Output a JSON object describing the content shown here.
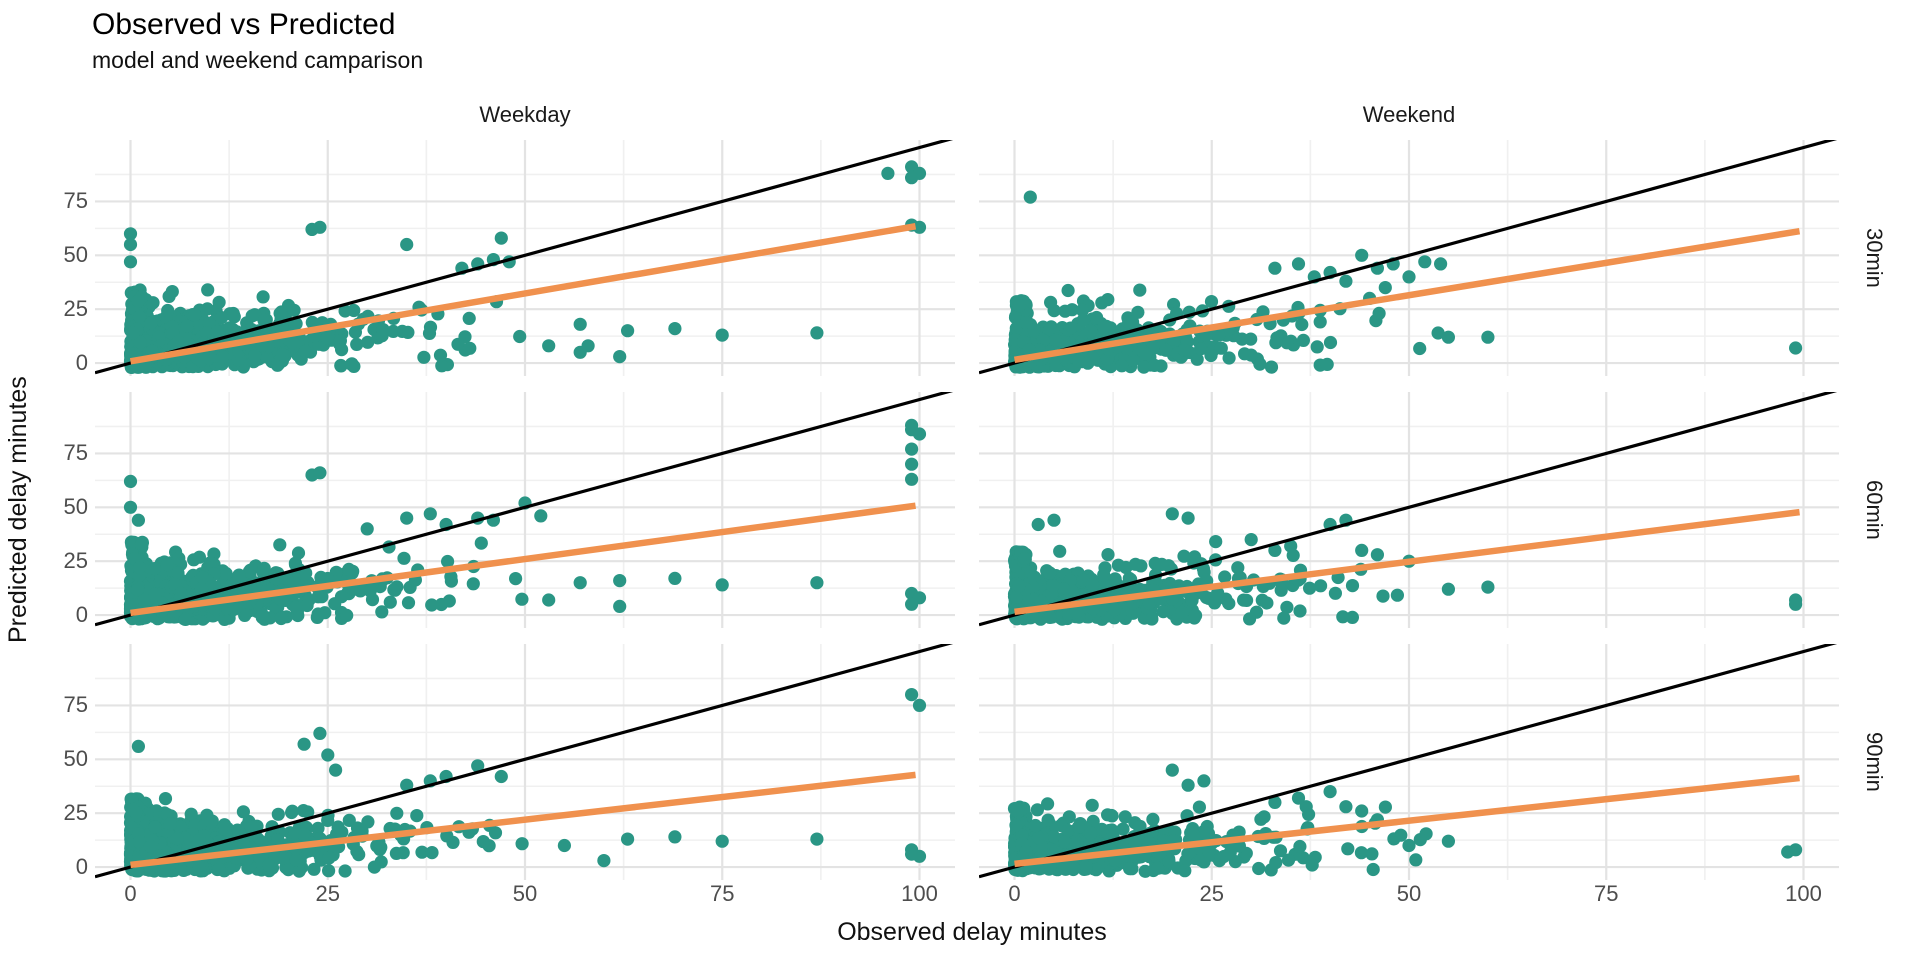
{
  "chart_data": {
    "type": "scatter",
    "title": "Observed vs Predicted",
    "subtitle": "model and weekend camparison",
    "xlabel": "Observed delay minutes",
    "ylabel": "Predicted delay minutes",
    "col_facets": [
      "Weekday",
      "Weekend"
    ],
    "row_facets": [
      "30min",
      "60min",
      "90min"
    ],
    "x_ticks": [
      0,
      25,
      50,
      75,
      100
    ],
    "y_ticks": [
      0,
      25,
      50,
      75
    ],
    "x_minor": [
      12.5,
      37.5,
      62.5,
      87.5
    ],
    "y_minor": [
      12.5,
      37.5,
      62.5,
      87.5
    ],
    "x_range": [
      -4.5,
      104.5
    ],
    "y_range": [
      -6,
      103.5
    ],
    "grid": "major+minor",
    "legend": "none",
    "colors": {
      "points": "#2a9685",
      "regression": "#f0914e",
      "identity": "#000000",
      "grid_major": "#e3e3e3",
      "grid_minor": "#f0f0f0",
      "tick_label": "#4d4d4d",
      "text": "#1a1a1a"
    },
    "point_radius": 6.6,
    "identity_line": {
      "slope": 1,
      "intercept": 0
    },
    "panels": [
      {
        "row": 0,
        "col": 0,
        "row_label": "30min",
        "col_label": "Weekday",
        "regression": {
          "slope": 0.63,
          "intercept": 0.8,
          "x_min": 0,
          "x_max": 99.5
        },
        "cloud": {
          "n": 1300,
          "seed": 101,
          "zero_stripe": 0.16,
          "stripe_ymax": 34,
          "x_exp_mean": 8.5,
          "x_cloud_max": 50,
          "y_spread": 9.0,
          "y_slope": 0.5,
          "y_cap": 42
        },
        "outliers": [
          [
            0,
            60
          ],
          [
            0,
            55
          ],
          [
            0,
            47
          ],
          [
            23,
            62
          ],
          [
            24,
            63
          ],
          [
            35,
            55
          ],
          [
            46,
            48
          ],
          [
            47,
            58
          ],
          [
            48,
            47
          ],
          [
            42,
            44
          ],
          [
            44,
            46
          ],
          [
            99,
            91
          ],
          [
            100,
            88
          ],
          [
            99,
            86
          ],
          [
            96,
            88
          ],
          [
            99,
            64
          ],
          [
            100,
            63
          ],
          [
            57,
            18
          ],
          [
            63,
            15
          ],
          [
            69,
            16
          ],
          [
            75,
            13
          ],
          [
            87,
            14
          ],
          [
            62,
            3
          ],
          [
            57,
            5
          ],
          [
            53,
            8
          ],
          [
            58,
            8
          ]
        ]
      },
      {
        "row": 0,
        "col": 1,
        "row_label": "30min",
        "col_label": "Weekend",
        "regression": {
          "slope": 0.6,
          "intercept": 1.5,
          "x_min": 0,
          "x_max": 99.5
        },
        "cloud": {
          "n": 850,
          "seed": 102,
          "zero_stripe": 0.16,
          "stripe_ymax": 30,
          "x_exp_mean": 9.5,
          "x_cloud_max": 55,
          "y_spread": 8.5,
          "y_slope": 0.5,
          "y_cap": 40
        },
        "outliers": [
          [
            2,
            77
          ],
          [
            33,
            44
          ],
          [
            36,
            46
          ],
          [
            40,
            42
          ],
          [
            44,
            50
          ],
          [
            46,
            44
          ],
          [
            48,
            46
          ],
          [
            52,
            47
          ],
          [
            54,
            46
          ],
          [
            50,
            40
          ],
          [
            42,
            38
          ],
          [
            38,
            40
          ],
          [
            47,
            35
          ],
          [
            45,
            30
          ],
          [
            99,
            7
          ],
          [
            60,
            12
          ],
          [
            55,
            12
          ]
        ]
      },
      {
        "row": 1,
        "col": 0,
        "row_label": "60min",
        "col_label": "Weekday",
        "regression": {
          "slope": 0.5,
          "intercept": 1.0,
          "x_min": 0,
          "x_max": 99.5
        },
        "cloud": {
          "n": 1300,
          "seed": 103,
          "zero_stripe": 0.16,
          "stripe_ymax": 34,
          "x_exp_mean": 8.5,
          "x_cloud_max": 50,
          "y_spread": 9.0,
          "y_slope": 0.45,
          "y_cap": 40
        },
        "outliers": [
          [
            0,
            62
          ],
          [
            0,
            50
          ],
          [
            1,
            44
          ],
          [
            23,
            65
          ],
          [
            24,
            66
          ],
          [
            30,
            40
          ],
          [
            35,
            45
          ],
          [
            38,
            47
          ],
          [
            40,
            42
          ],
          [
            44,
            45
          ],
          [
            46,
            44
          ],
          [
            50,
            52
          ],
          [
            52,
            46
          ],
          [
            99,
            88
          ],
          [
            99,
            86
          ],
          [
            100,
            84
          ],
          [
            99,
            77
          ],
          [
            99,
            70
          ],
          [
            99,
            63
          ],
          [
            99,
            10
          ],
          [
            100,
            8
          ],
          [
            99,
            5
          ],
          [
            57,
            15
          ],
          [
            62,
            16
          ],
          [
            69,
            17
          ],
          [
            75,
            14
          ],
          [
            87,
            15
          ],
          [
            62,
            4
          ],
          [
            53,
            7
          ]
        ]
      },
      {
        "row": 1,
        "col": 1,
        "row_label": "60min",
        "col_label": "Weekend",
        "regression": {
          "slope": 0.465,
          "intercept": 1.5,
          "x_min": 0,
          "x_max": 99.5
        },
        "cloud": {
          "n": 850,
          "seed": 104,
          "zero_stripe": 0.16,
          "stripe_ymax": 30,
          "x_exp_mean": 9.5,
          "x_cloud_max": 55,
          "y_spread": 8.5,
          "y_slope": 0.45,
          "y_cap": 38
        },
        "outliers": [
          [
            3,
            42
          ],
          [
            5,
            44
          ],
          [
            20,
            47
          ],
          [
            22,
            45
          ],
          [
            30,
            35
          ],
          [
            33,
            30
          ],
          [
            35,
            32
          ],
          [
            40,
            42
          ],
          [
            42,
            44
          ],
          [
            44,
            30
          ],
          [
            46,
            28
          ],
          [
            50,
            25
          ],
          [
            99,
            7
          ],
          [
            99,
            5
          ],
          [
            55,
            12
          ],
          [
            60,
            13
          ]
        ]
      },
      {
        "row": 2,
        "col": 0,
        "row_label": "90min",
        "col_label": "Weekday",
        "regression": {
          "slope": 0.42,
          "intercept": 1.0,
          "x_min": 0,
          "x_max": 99.5
        },
        "cloud": {
          "n": 1300,
          "seed": 105,
          "zero_stripe": 0.16,
          "stripe_ymax": 32,
          "x_exp_mean": 8.5,
          "x_cloud_max": 50,
          "y_spread": 8.2,
          "y_slope": 0.42,
          "y_cap": 36
        },
        "outliers": [
          [
            1,
            56
          ],
          [
            22,
            57
          ],
          [
            24,
            62
          ],
          [
            25,
            52
          ],
          [
            26,
            45
          ],
          [
            35,
            38
          ],
          [
            38,
            40
          ],
          [
            40,
            42
          ],
          [
            44,
            47
          ],
          [
            47,
            42
          ],
          [
            99,
            80
          ],
          [
            100,
            75
          ],
          [
            99,
            8
          ],
          [
            99,
            6
          ],
          [
            100,
            5
          ],
          [
            55,
            10
          ],
          [
            63,
            13
          ],
          [
            69,
            14
          ],
          [
            75,
            12
          ],
          [
            87,
            13
          ],
          [
            60,
            3
          ]
        ]
      },
      {
        "row": 2,
        "col": 1,
        "row_label": "90min",
        "col_label": "Weekend",
        "regression": {
          "slope": 0.4,
          "intercept": 1.5,
          "x_min": 0,
          "x_max": 99.5
        },
        "cloud": {
          "n": 850,
          "seed": 106,
          "zero_stripe": 0.16,
          "stripe_ymax": 28,
          "x_exp_mean": 9.5,
          "x_cloud_max": 55,
          "y_spread": 7.8,
          "y_slope": 0.42,
          "y_cap": 34
        },
        "outliers": [
          [
            20,
            45
          ],
          [
            22,
            38
          ],
          [
            24,
            40
          ],
          [
            33,
            30
          ],
          [
            36,
            32
          ],
          [
            40,
            35
          ],
          [
            42,
            28
          ],
          [
            44,
            26
          ],
          [
            46,
            22
          ],
          [
            99,
            8
          ],
          [
            98,
            7
          ],
          [
            50,
            10
          ],
          [
            55,
            12
          ]
        ]
      }
    ]
  }
}
